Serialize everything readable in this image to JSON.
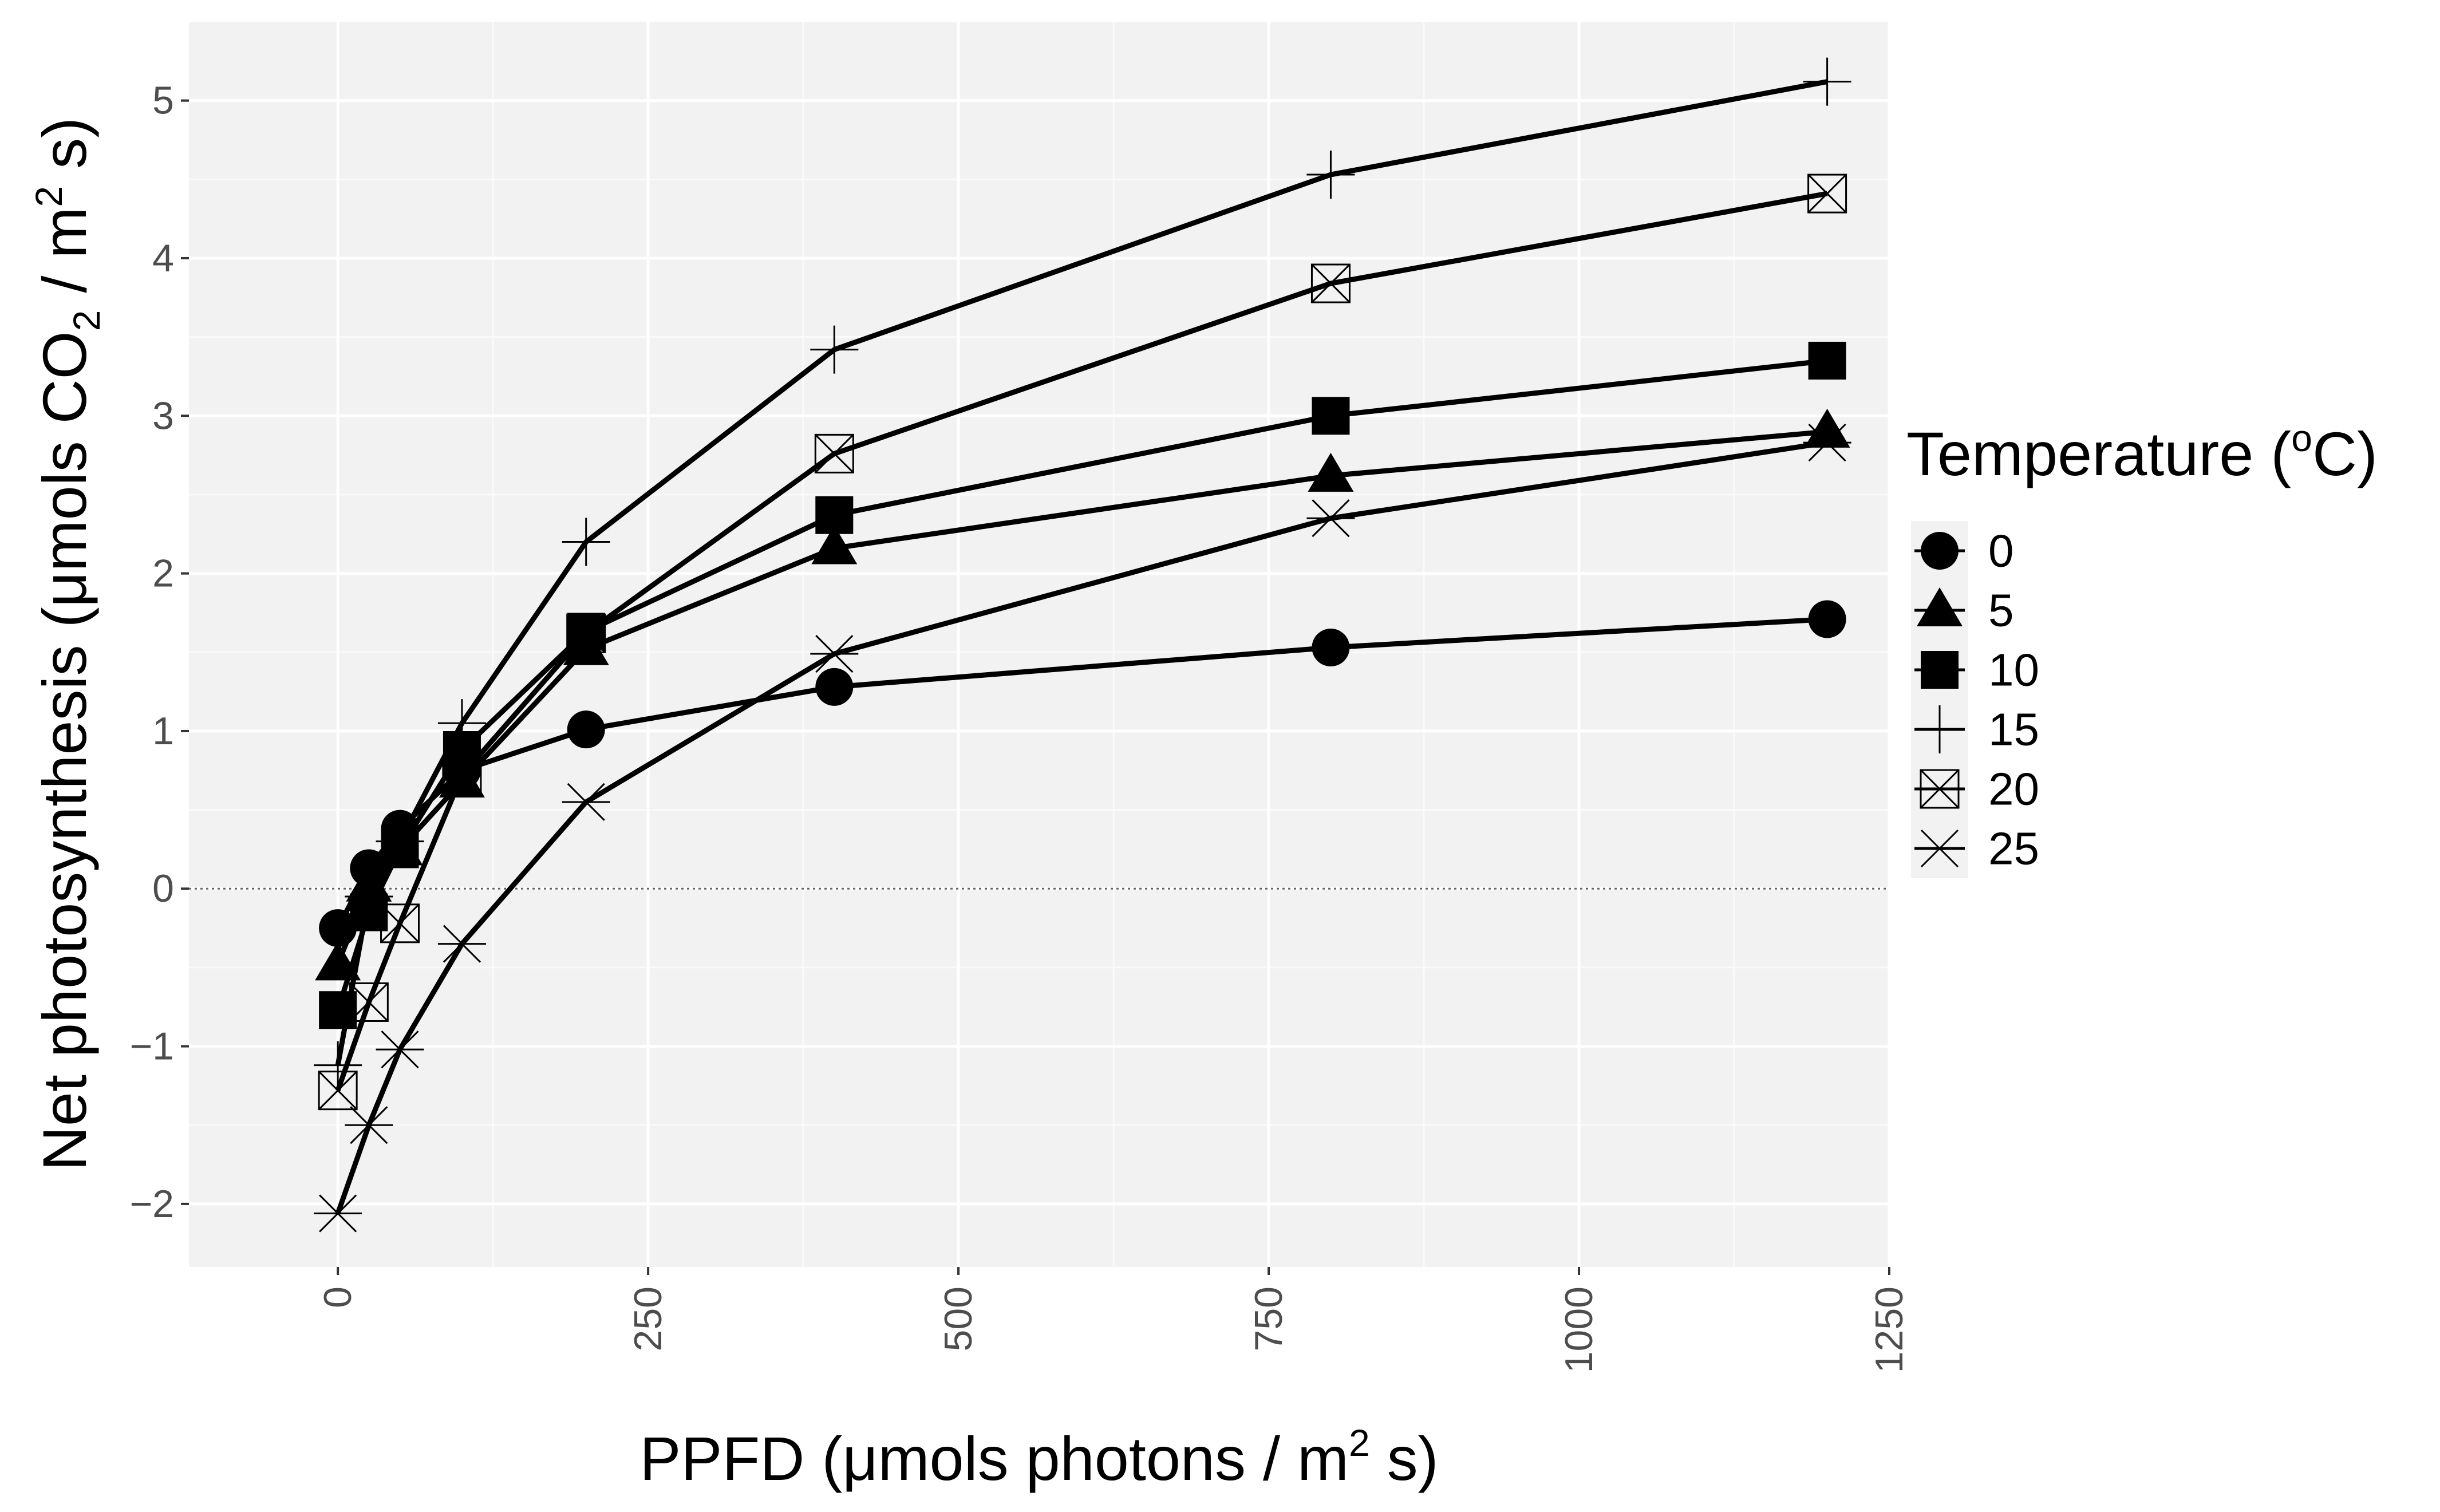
{
  "chart_data": {
    "type": "line",
    "title": "",
    "xlabel": {
      "pre": "PPFD (μmols photons /  m",
      "sup": "2",
      "post": " s)"
    },
    "ylabel": {
      "pre": "Net photosynthesis (μmols  CO",
      "sub": "2",
      "mid": " / m",
      "sup": "2",
      "post": " s)"
    },
    "xlim": [
      -120,
      1250
    ],
    "ylim": [
      -2.4,
      5.5
    ],
    "x_ticks": [
      0,
      250,
      500,
      750,
      1000,
      1250
    ],
    "x_tick_labels": [
      "0",
      "250",
      "500",
      "750",
      "1000",
      "1250"
    ],
    "y_ticks": [
      -2,
      -1,
      0,
      1,
      2,
      3,
      4,
      5
    ],
    "y_tick_labels": [
      "−2",
      "−1",
      "0",
      "1",
      "2",
      "3",
      "4",
      "5"
    ],
    "grid": true,
    "zero_line": true,
    "legend": {
      "title": {
        "pre": "Temperature (",
        "sup": "o",
        "post": "C)"
      },
      "position": "right"
    },
    "x": [
      0,
      25,
      50,
      100,
      200,
      400,
      800,
      1200
    ],
    "series": [
      {
        "name": "0",
        "marker": "circle",
        "values": [
          -0.25,
          0.13,
          0.38,
          0.75,
          1.01,
          1.28,
          1.53,
          1.71
        ]
      },
      {
        "name": "5",
        "marker": "triangle",
        "values": [
          -0.48,
          0.02,
          0.25,
          0.68,
          1.52,
          2.16,
          2.62,
          2.9
        ]
      },
      {
        "name": "10",
        "marker": "square",
        "values": [
          -0.77,
          -0.15,
          0.25,
          0.88,
          1.63,
          2.37,
          3.0,
          3.35
        ]
      },
      {
        "name": "15",
        "marker": "plus",
        "values": [
          -1.12,
          -0.05,
          0.3,
          1.05,
          2.2,
          3.42,
          4.53,
          5.12
        ]
      },
      {
        "name": "20",
        "marker": "boxx",
        "values": [
          -1.28,
          -0.72,
          -0.22,
          0.72,
          1.62,
          2.76,
          3.84,
          4.41
        ]
      },
      {
        "name": "25",
        "marker": "asterisk",
        "values": [
          -2.06,
          -1.5,
          -1.02,
          -0.35,
          0.55,
          1.49,
          2.35,
          2.83
        ]
      }
    ]
  }
}
